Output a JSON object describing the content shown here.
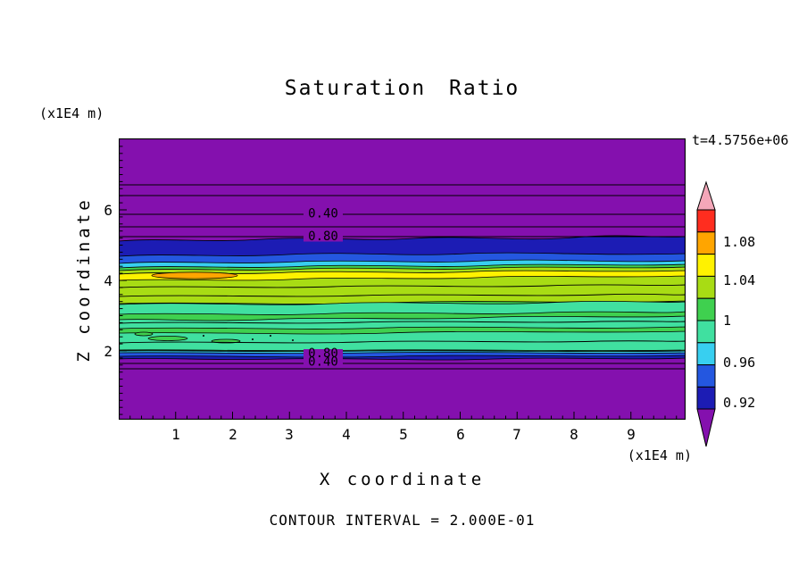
{
  "title": "Saturation Ratio",
  "annotations": {
    "time": "t=4.5756e+06",
    "contour_note": "CONTOUR INTERVAL = 2.000E-01",
    "y_unit": "(x1E4 m)",
    "x_unit": "(x1E4 m)"
  },
  "axes": {
    "x": {
      "label": "X coordinate",
      "ticks": [
        "1",
        "2",
        "3",
        "4",
        "5",
        "6",
        "7",
        "8",
        "9"
      ]
    },
    "y": {
      "label": "Z coordinate",
      "ticks": [
        "6",
        "4",
        "2"
      ]
    }
  },
  "contour_labels": {
    "top_040": "0.40",
    "top_080": "0.80",
    "bottom_080": "0.80",
    "bottom_040": "0.40"
  },
  "colorbar": {
    "labels": [
      "1.08",
      "1.04",
      "1",
      "0.96",
      "0.92"
    ]
  },
  "colors": {
    "purple": "#8410AE",
    "navy": "#1C1CB4",
    "blue": "#2457E0",
    "cyan": "#38CFF0",
    "springgreen": "#40E0A0",
    "green": "#3FD04F",
    "yellowgreen": "#A8DC14",
    "yellow": "#FFF200",
    "orange": "#FFA500",
    "red": "#FF2D1F",
    "pink": "#F4A7B9",
    "black": "#000000"
  },
  "chart_data": {
    "type": "heatmap",
    "subtype": "filled-contour",
    "title": "Saturation Ratio",
    "xlabel": "X coordinate",
    "ylabel": "Z coordinate",
    "x_unit": "x1E4 m",
    "y_unit": "x1E4 m",
    "x_range": [
      0,
      10
    ],
    "z_range": [
      0,
      8
    ],
    "x_ticks": [
      1,
      2,
      3,
      4,
      5,
      6,
      7,
      8,
      9
    ],
    "z_ticks": [
      2,
      4,
      6
    ],
    "time_annotation": "t=4.5756e+06",
    "contour_interval": 0.2,
    "labeled_contours": [
      {
        "value": 0.4,
        "z_approx": 5.9,
        "region": "upper purple zone"
      },
      {
        "value": 0.8,
        "z_approx": 5.25,
        "region": "upper purple zone"
      },
      {
        "value": 0.8,
        "z_approx": 1.9,
        "region": "lower purple zone"
      },
      {
        "value": 0.4,
        "z_approx": 1.7,
        "region": "lower purple zone"
      }
    ],
    "colorbar": {
      "orientation": "vertical",
      "position": "right",
      "levels": [
        0.92,
        0.96,
        1.0,
        1.04,
        1.08
      ],
      "box_colors_top_to_bottom": [
        "red",
        "orange",
        "yellow",
        "yellow-green",
        "green",
        "spring-green",
        "cyan",
        "blue",
        "navy"
      ],
      "over_arrow_color": "pink",
      "under_arrow_color": "purple"
    },
    "bands_top_to_bottom": [
      {
        "z_from": 5.4,
        "z_to": 8.0,
        "saturation": "< 0.4 rising to ~0.9 downward, line contours 0.2-0.8",
        "color": "purple"
      },
      {
        "z_from": 5.0,
        "z_to": 5.4,
        "saturation": "~0.92",
        "color": "navy"
      },
      {
        "z_from": 4.85,
        "z_to": 5.0,
        "saturation": "0.92-0.96",
        "color": "blue"
      },
      {
        "z_from": 4.7,
        "z_to": 4.85,
        "saturation": "~0.96",
        "color": "cyan"
      },
      {
        "z_from": 4.35,
        "z_to": 4.7,
        "saturation": "1.04-1.08 streak, patch > 1.08 near x=1-2",
        "color": "yellow with orange patch"
      },
      {
        "z_from": 3.9,
        "z_to": 4.35,
        "saturation": "1.0-1.04",
        "color": "yellow-green / green"
      },
      {
        "z_from": 2.1,
        "z_to": 3.9,
        "saturation": "0.96-1.0 with wavy 1.0 streaks and speckles",
        "color": "spring-green"
      },
      {
        "z_from": 1.95,
        "z_to": 2.1,
        "saturation": "~0.96",
        "color": "cyan"
      },
      {
        "z_from": 1.8,
        "z_to": 1.95,
        "saturation": "~0.92",
        "color": "blue / navy"
      },
      {
        "z_from": 0.0,
        "z_to": 1.8,
        "saturation": "< 0.9 falling downward, line contours 0.8, 0.4",
        "color": "purple"
      }
    ]
  }
}
